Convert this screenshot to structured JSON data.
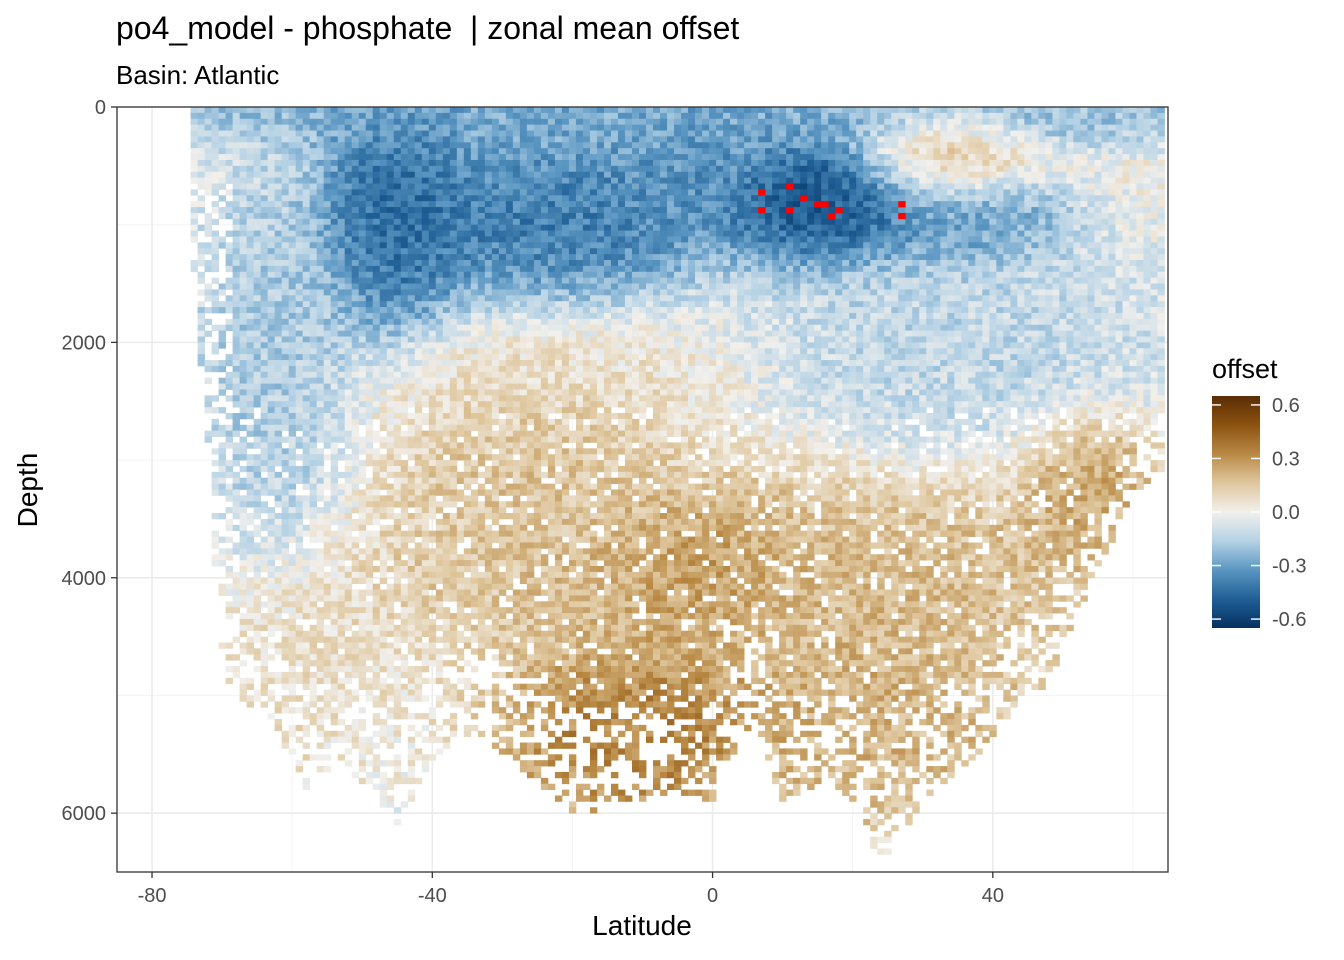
{
  "chart_data": {
    "type": "heatmap",
    "title": "po4_model - phosphate  | zonal mean offset",
    "subtitle": "Basin: Atlantic",
    "xlabel": "Latitude",
    "ylabel": "Depth",
    "xlim": [
      -85,
      65
    ],
    "ylim": [
      0,
      6500
    ],
    "y_reversed": true,
    "x_ticks": [
      -80,
      -40,
      0,
      40
    ],
    "y_ticks": [
      0,
      2000,
      4000,
      6000
    ],
    "grid": true,
    "legend": {
      "title": "offset",
      "placement": "right",
      "range": [
        -0.65,
        0.65
      ],
      "ticks": [
        0.6,
        0.3,
        0.0,
        -0.3,
        -0.6
      ],
      "tick_labels": [
        "0.6",
        "0.3",
        "0.0",
        "-0.3",
        "-0.6"
      ],
      "colors": [
        "#053061",
        "#1f5f95",
        "#5a96c2",
        "#b5d2e5",
        "#f2f0ec",
        "#dfc79e",
        "#b98a45",
        "#8c5210",
        "#5a2d04"
      ]
    },
    "out_of_range_color": "#ff0000",
    "out_of_range_cells": [
      [
        7,
        700
      ],
      [
        7,
        850
      ],
      [
        11,
        650
      ],
      [
        11,
        850
      ],
      [
        13,
        750
      ],
      [
        15,
        800
      ],
      [
        16,
        800
      ],
      [
        17,
        900
      ],
      [
        18,
        850
      ],
      [
        27,
        800
      ],
      [
        27,
        900
      ]
    ],
    "regions": [
      {
        "lat": [
          -74,
          62
        ],
        "depth": [
          0,
          80
        ],
        "offset": -0.3
      },
      {
        "lat": [
          -52,
          -38
        ],
        "depth": [
          150,
          1700
        ],
        "offset": -0.5
      },
      {
        "lat": [
          -38,
          -5
        ],
        "depth": [
          500,
          1500
        ],
        "offset": -0.45
      },
      {
        "lat": [
          -10,
          5
        ],
        "depth": [
          200,
          700
        ],
        "offset": -0.35
      },
      {
        "lat": [
          5,
          28
        ],
        "depth": [
          500,
          1100
        ],
        "offset": -0.6
      },
      {
        "lat": [
          28,
          45
        ],
        "depth": [
          800,
          1100
        ],
        "offset": -0.35
      },
      {
        "lat": [
          25,
          40
        ],
        "depth": [
          200,
          600
        ],
        "offset": 0.2
      },
      {
        "lat": [
          -70,
          -55
        ],
        "depth": [
          800,
          3500
        ],
        "offset": -0.2
      },
      {
        "lat": [
          5,
          60
        ],
        "depth": [
          1300,
          2800
        ],
        "offset": -0.15
      },
      {
        "lat": [
          -45,
          5
        ],
        "depth": [
          1800,
          3000
        ],
        "offset": 0.08
      },
      {
        "lat": [
          -38,
          -10
        ],
        "depth": [
          2600,
          3300
        ],
        "offset": 0.2
      },
      {
        "lat": [
          -40,
          55
        ],
        "depth": [
          3200,
          4500
        ],
        "offset": 0.22
      },
      {
        "lat": [
          -10,
          5
        ],
        "depth": [
          3600,
          4200
        ],
        "offset": 0.35
      },
      {
        "lat": [
          48,
          60
        ],
        "depth": [
          2800,
          3600
        ],
        "offset": 0.3
      },
      {
        "lat": [
          -68,
          -52
        ],
        "depth": [
          4200,
          5500
        ],
        "offset": 0.08
      },
      {
        "lat": [
          -25,
          5
        ],
        "depth": [
          4800,
          5800
        ],
        "offset": 0.4
      },
      {
        "lat": [
          5,
          40
        ],
        "depth": [
          4500,
          5800
        ],
        "offset": 0.25
      }
    ],
    "depth_extent": [
      {
        "lat": -74,
        "max_depth": 1400
      },
      {
        "lat": -72,
        "max_depth": 3000
      },
      {
        "lat": -70,
        "max_depth": 4800
      },
      {
        "lat": -66,
        "max_depth": 5100
      },
      {
        "lat": -62,
        "max_depth": 5300
      },
      {
        "lat": -58,
        "max_depth": 5800
      },
      {
        "lat": -52,
        "max_depth": 5600
      },
      {
        "lat": -48,
        "max_depth": 5900
      },
      {
        "lat": -45,
        "max_depth": 6100
      },
      {
        "lat": -40,
        "max_depth": 5600
      },
      {
        "lat": -34,
        "max_depth": 5300
      },
      {
        "lat": -26,
        "max_depth": 5700
      },
      {
        "lat": -20,
        "max_depth": 6000
      },
      {
        "lat": -12,
        "max_depth": 5900
      },
      {
        "lat": -6,
        "max_depth": 5800
      },
      {
        "lat": 0,
        "max_depth": 5900
      },
      {
        "lat": 6,
        "max_depth": 5200
      },
      {
        "lat": 10,
        "max_depth": 5900
      },
      {
        "lat": 16,
        "max_depth": 5700
      },
      {
        "lat": 20,
        "max_depth": 5900
      },
      {
        "lat": 24,
        "max_depth": 6400
      },
      {
        "lat": 30,
        "max_depth": 5900
      },
      {
        "lat": 36,
        "max_depth": 5600
      },
      {
        "lat": 42,
        "max_depth": 5200
      },
      {
        "lat": 48,
        "max_depth": 4900
      },
      {
        "lat": 52,
        "max_depth": 4300
      },
      {
        "lat": 56,
        "max_depth": 3800
      },
      {
        "lat": 60,
        "max_depth": 3300
      },
      {
        "lat": 64,
        "max_depth": 3100
      }
    ]
  }
}
